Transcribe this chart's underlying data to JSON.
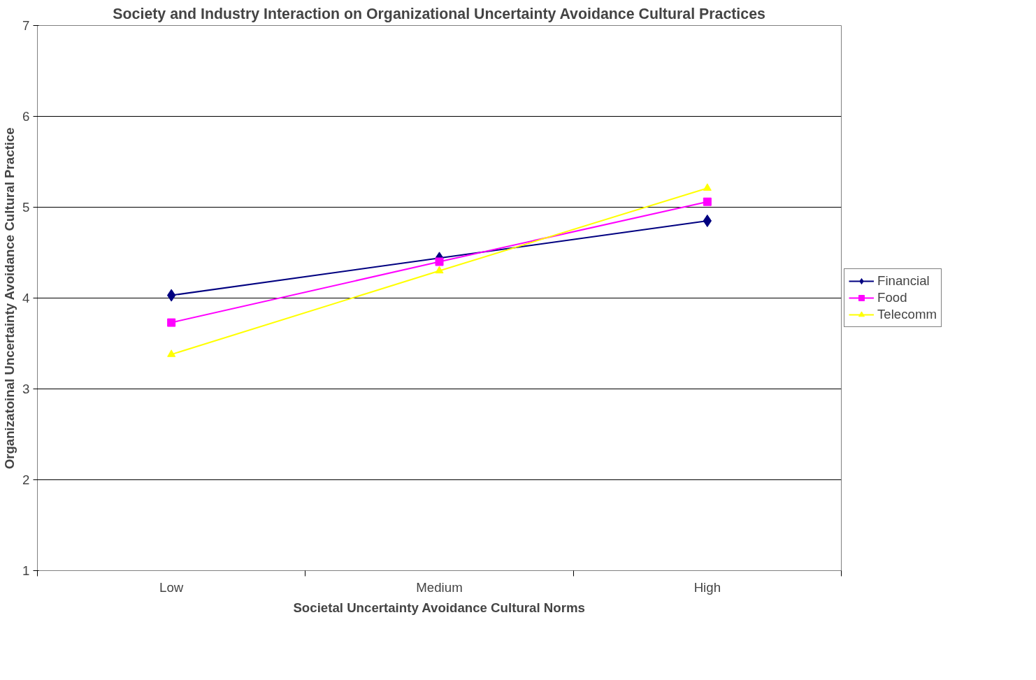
{
  "chart_data": {
    "type": "line",
    "title": "Society and Industry Interaction on Organizational Uncertainty Avoidance Cultural Practices",
    "xlabel": "Societal Uncertainty Avoidance Cultural Norms",
    "ylabel": "Organizatoinal Uncertainty Avoidance Cultural Practice",
    "categories": [
      "Low",
      "Medium",
      "High"
    ],
    "series": [
      {
        "name": "Financial",
        "color": "#000080",
        "marker": "diamond",
        "values": [
          4.03,
          4.44,
          4.85
        ]
      },
      {
        "name": "Food",
        "color": "#ff00ff",
        "marker": "square",
        "values": [
          3.73,
          4.4,
          5.06
        ]
      },
      {
        "name": "Telecomm",
        "color": "#ffff00",
        "marker": "triangle",
        "values": [
          3.38,
          4.3,
          5.21
        ]
      }
    ],
    "ylim": [
      1,
      7
    ],
    "yticks": [
      1,
      2,
      3,
      4,
      5,
      6,
      7
    ],
    "grid": "y",
    "legend": "right"
  }
}
